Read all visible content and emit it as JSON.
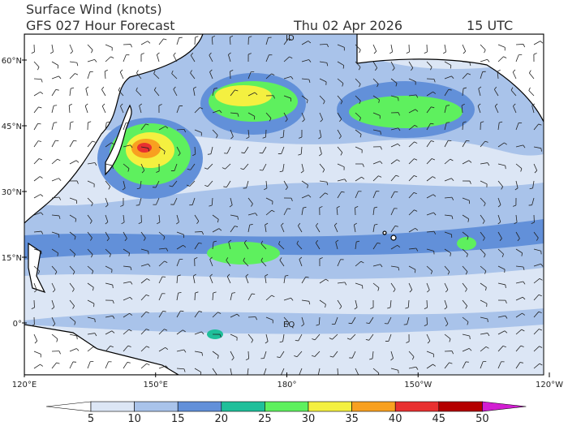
{
  "header": {
    "title": "Surface Wind (knots)",
    "subtitle": "GFS 027 Hour Forecast",
    "date": "Thu 02 Apr 2026",
    "time": "15 UTC"
  },
  "map": {
    "lat_labels": [
      "60°N",
      "45°N",
      "30°N",
      "15°N",
      "0°"
    ],
    "lon_labels": [
      "120°E",
      "150°E",
      "180°",
      "150°W",
      "120°W"
    ],
    "annotations": [
      "ID",
      "EQ"
    ]
  },
  "colorbar": {
    "ticks": [
      "5",
      "10",
      "15",
      "20",
      "25",
      "30",
      "35",
      "40",
      "45",
      "50"
    ],
    "colors": [
      "#ffffff",
      "#dce6f5",
      "#a9c3ea",
      "#6290d9",
      "#1fbf9a",
      "#5ef05e",
      "#f4f040",
      "#f8a020",
      "#e83030",
      "#b40000",
      "#d21ed2"
    ]
  }
}
